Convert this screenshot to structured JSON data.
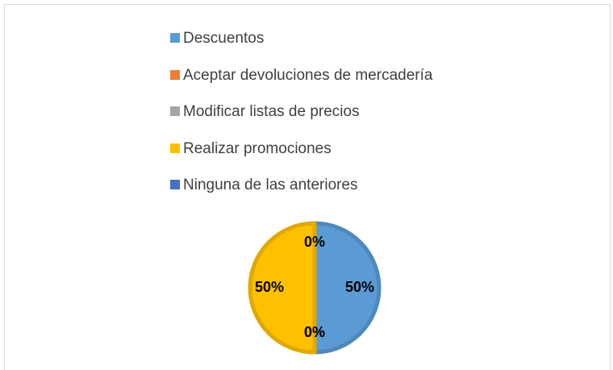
{
  "chart_data": {
    "type": "pie",
    "categories": [
      "Descuentos",
      "Aceptar devoluciones de mercadería",
      "Modificar listas de precios",
      "Realizar promociones",
      "Ninguna de las anteriores"
    ],
    "values": [
      50,
      0,
      0,
      50,
      0
    ],
    "value_labels": [
      "50%",
      "0%",
      "0%",
      "50%",
      "0%"
    ],
    "colors": [
      "#5b9bd5",
      "#ed7d31",
      "#a5a5a5",
      "#ffc000",
      "#4472c4"
    ],
    "legend": "top"
  }
}
